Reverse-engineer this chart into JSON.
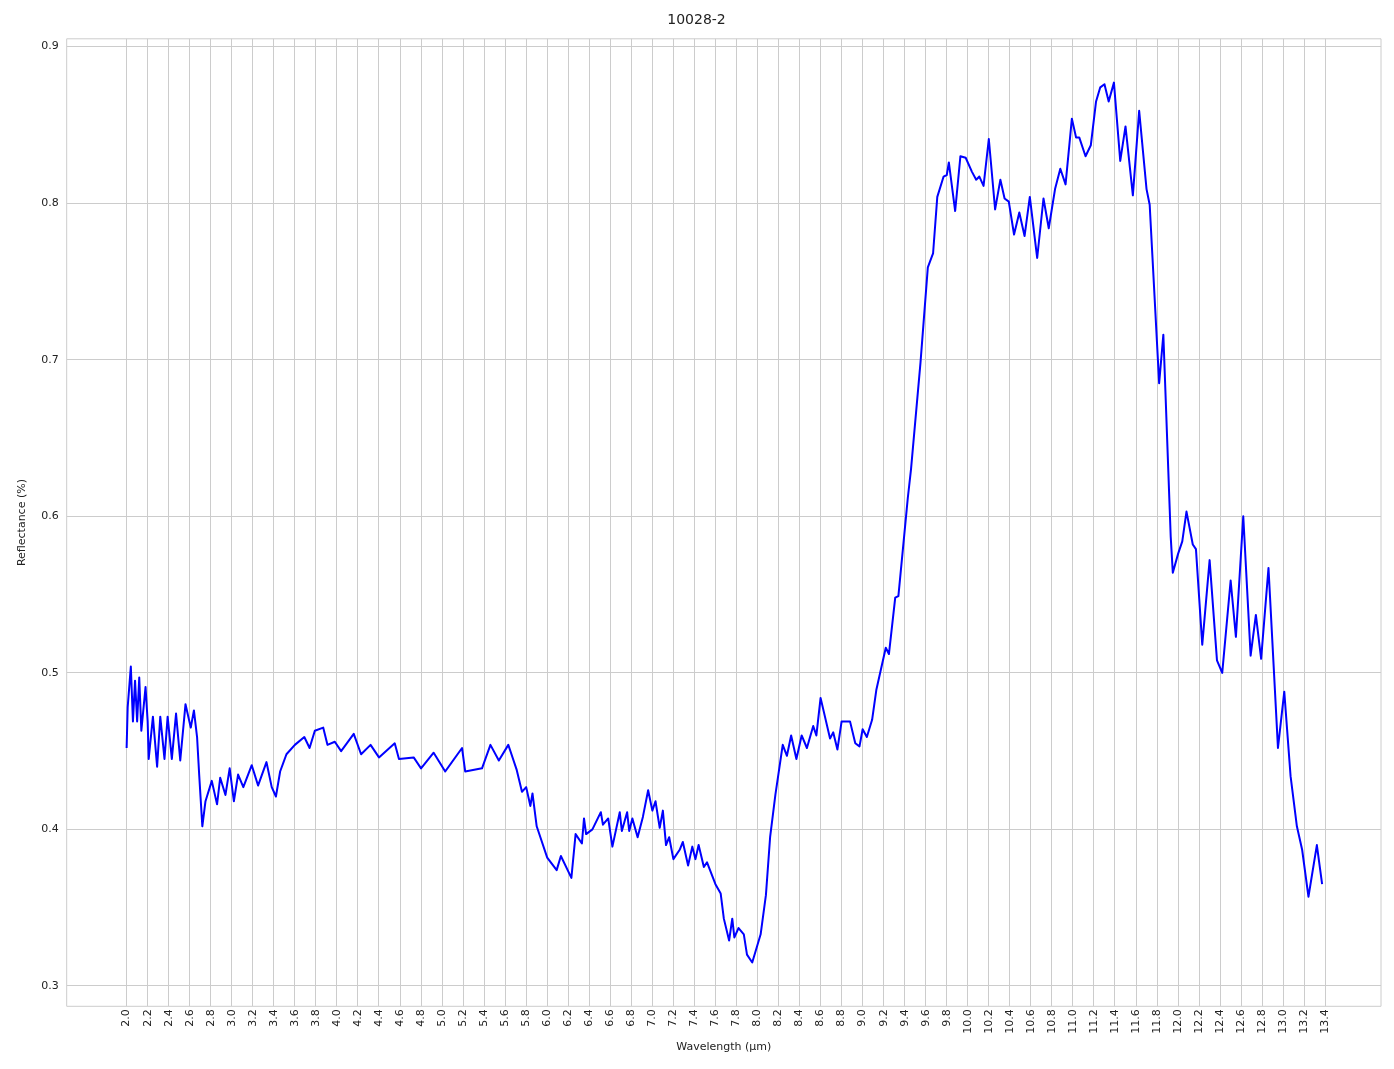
{
  "chart_data": {
    "type": "line",
    "title": "10028-2",
    "xlabel": "Wavelength (µm)",
    "ylabel": "Reflectance (%)",
    "x": [
      2.0,
      2.01,
      2.04,
      2.06,
      2.08,
      2.1,
      2.12,
      2.14,
      2.18,
      2.2,
      2.21,
      2.25,
      2.29,
      2.32,
      2.36,
      2.39,
      2.43,
      2.47,
      2.51,
      2.56,
      2.61,
      2.64,
      2.67,
      2.69,
      2.72,
      2.75,
      2.81,
      2.86,
      2.89,
      2.94,
      2.98,
      3.02,
      3.06,
      3.11,
      3.19,
      3.25,
      3.33,
      3.38,
      3.42,
      3.46,
      3.52,
      3.6,
      3.69,
      3.74,
      3.79,
      3.87,
      3.91,
      3.98,
      4.04,
      4.16,
      4.23,
      4.32,
      4.4,
      4.55,
      4.59,
      4.73,
      4.8,
      4.92,
      5.03,
      5.19,
      5.22,
      5.38,
      5.46,
      5.54,
      5.63,
      5.71,
      5.76,
      5.8,
      5.84,
      5.86,
      5.9,
      6.0,
      6.09,
      6.13,
      6.23,
      6.27,
      6.33,
      6.35,
      6.37,
      6.43,
      6.51,
      6.53,
      6.58,
      6.62,
      6.69,
      6.71,
      6.76,
      6.78,
      6.81,
      6.86,
      6.91,
      6.96,
      7.0,
      7.03,
      7.07,
      7.1,
      7.13,
      7.16,
      7.2,
      7.26,
      7.29,
      7.34,
      7.38,
      7.41,
      7.44,
      7.49,
      7.52,
      7.6,
      7.65,
      7.68,
      7.73,
      7.76,
      7.78,
      7.82,
      7.87,
      7.9,
      7.95,
      8.03,
      8.08,
      8.12,
      8.17,
      8.24,
      8.28,
      8.32,
      8.37,
      8.42,
      8.47,
      8.53,
      8.56,
      8.6,
      8.69,
      8.72,
      8.76,
      8.8,
      8.88,
      8.93,
      8.97,
      9.0,
      9.04,
      9.09,
      9.13,
      9.22,
      9.25,
      9.31,
      9.34,
      9.43,
      9.46,
      9.55,
      9.62,
      9.67,
      9.71,
      9.77,
      9.8,
      9.82,
      9.88,
      9.93,
      9.98,
      10.04,
      10.08,
      10.11,
      10.15,
      10.2,
      10.26,
      10.31,
      10.35,
      10.39,
      10.44,
      10.49,
      10.54,
      10.59,
      10.66,
      10.72,
      10.77,
      10.83,
      10.88,
      10.93,
      10.99,
      11.03,
      11.06,
      11.12,
      11.17,
      11.22,
      11.26,
      11.3,
      11.34,
      11.39,
      11.45,
      11.5,
      11.57,
      11.63,
      11.7,
      11.73,
      11.82,
      11.86,
      11.93,
      11.95,
      12.0,
      12.04,
      12.08,
      12.14,
      12.17,
      12.23,
      12.3,
      12.37,
      12.42,
      12.5,
      12.55,
      12.62,
      12.69,
      12.74,
      12.79,
      12.86,
      12.95,
      13.01,
      13.07,
      13.13,
      13.18,
      13.24,
      13.32,
      13.37
    ],
    "series": [
      {
        "color": "#0000ff",
        "values": [
          0.452,
          0.478,
          0.504,
          0.469,
          0.495,
          0.469,
          0.497,
          0.463,
          0.491,
          0.469,
          0.445,
          0.472,
          0.44,
          0.472,
          0.445,
          0.472,
          0.445,
          0.474,
          0.444,
          0.48,
          0.465,
          0.476,
          0.459,
          0.435,
          0.402,
          0.418,
          0.431,
          0.416,
          0.433,
          0.422,
          0.439,
          0.418,
          0.435,
          0.427,
          0.441,
          0.428,
          0.443,
          0.427,
          0.421,
          0.437,
          0.448,
          0.454,
          0.459,
          0.452,
          0.463,
          0.465,
          0.454,
          0.456,
          0.45,
          0.461,
          0.448,
          0.454,
          0.446,
          0.455,
          0.445,
          0.446,
          0.439,
          0.449,
          0.437,
          0.452,
          0.437,
          0.439,
          0.454,
          0.444,
          0.454,
          0.438,
          0.424,
          0.427,
          0.415,
          0.423,
          0.402,
          0.382,
          0.374,
          0.383,
          0.369,
          0.397,
          0.391,
          0.407,
          0.397,
          0.4,
          0.411,
          0.403,
          0.407,
          0.389,
          0.411,
          0.399,
          0.411,
          0.399,
          0.407,
          0.395,
          0.408,
          0.425,
          0.412,
          0.418,
          0.401,
          0.412,
          0.39,
          0.395,
          0.381,
          0.387,
          0.392,
          0.377,
          0.389,
          0.381,
          0.39,
          0.376,
          0.379,
          0.365,
          0.359,
          0.343,
          0.329,
          0.343,
          0.331,
          0.337,
          0.333,
          0.32,
          0.315,
          0.333,
          0.358,
          0.395,
          0.422,
          0.454,
          0.447,
          0.46,
          0.445,
          0.46,
          0.452,
          0.466,
          0.46,
          0.484,
          0.458,
          0.462,
          0.451,
          0.469,
          0.469,
          0.455,
          0.453,
          0.464,
          0.459,
          0.47,
          0.489,
          0.516,
          0.512,
          0.548,
          0.549,
          0.612,
          0.63,
          0.698,
          0.759,
          0.768,
          0.804,
          0.817,
          0.818,
          0.826,
          0.795,
          0.83,
          0.829,
          0.82,
          0.815,
          0.817,
          0.811,
          0.841,
          0.796,
          0.815,
          0.803,
          0.801,
          0.78,
          0.794,
          0.779,
          0.804,
          0.765,
          0.803,
          0.784,
          0.809,
          0.822,
          0.812,
          0.854,
          0.842,
          0.842,
          0.83,
          0.837,
          0.865,
          0.874,
          0.876,
          0.865,
          0.877,
          0.827,
          0.849,
          0.805,
          0.859,
          0.809,
          0.799,
          0.685,
          0.716,
          0.587,
          0.564,
          0.576,
          0.584,
          0.603,
          0.582,
          0.579,
          0.518,
          0.572,
          0.508,
          0.5,
          0.559,
          0.523,
          0.6,
          0.511,
          0.537,
          0.509,
          0.567,
          0.452,
          0.488,
          0.434,
          0.402,
          0.387,
          0.357,
          0.39,
          0.365
        ]
      }
    ],
    "xlim": [
      1.43,
      13.93
    ],
    "xticks": [
      {
        "value": 2,
        "label": "2.0"
      },
      2.2,
      2.4,
      2.6,
      2.8,
      {
        "value": 3,
        "label": "3.0"
      },
      3.2,
      3.4,
      3.6,
      3.8,
      {
        "value": 4,
        "label": "4.0"
      },
      4.2,
      4.4,
      4.6,
      4.8,
      {
        "value": 5,
        "label": "5.0"
      },
      5.2,
      5.4,
      5.6,
      5.8,
      {
        "value": 6,
        "label": "6.0"
      },
      6.2,
      6.4,
      6.6,
      6.8,
      {
        "value": 7,
        "label": "7.0"
      },
      7.2,
      7.4,
      7.6,
      7.8,
      {
        "value": 8,
        "label": "8.0"
      },
      8.2,
      8.4,
      8.6,
      8.8,
      {
        "value": 9,
        "label": "9.0"
      },
      9.2,
      9.4,
      9.6,
      9.8,
      {
        "value": 10,
        "label": "10.0"
      },
      10.2,
      10.4,
      10.6,
      10.8,
      {
        "value": 11,
        "label": "11.0"
      },
      11.2,
      11.4,
      11.6,
      11.8,
      {
        "value": 12,
        "label": "12.0"
      },
      12.2,
      12.4,
      12.6,
      12.8,
      {
        "value": 13,
        "label": "13.0"
      },
      13.2,
      13.4
    ],
    "ylim": [
      0.287,
      0.905
    ],
    "yticks": [
      0.3,
      0.4,
      0.5,
      0.6,
      0.7,
      0.8,
      0.9
    ],
    "grid": true
  }
}
